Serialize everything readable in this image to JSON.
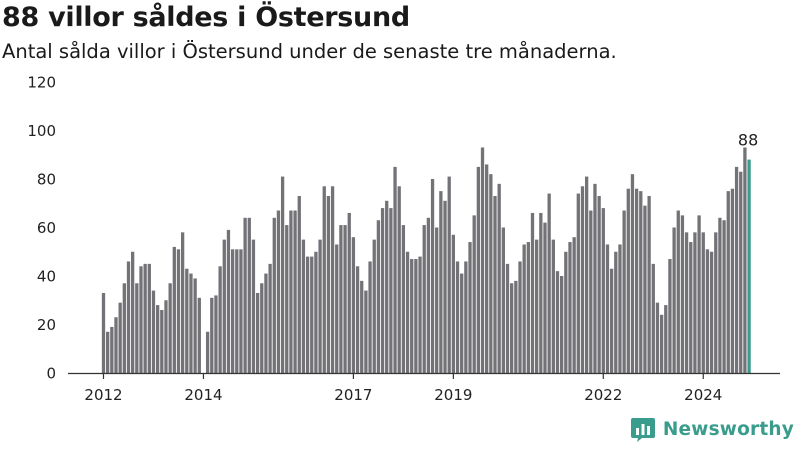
{
  "header": {
    "title": "88 villor såldes i Östersund",
    "subtitle": "Antal sålda villor i Östersund under de senaste tre månaderna."
  },
  "brand": {
    "name": "Newsworthy",
    "logo_icon": "bar-chart-logo-icon"
  },
  "colors": {
    "bar": "#737277",
    "highlight": "#3a9c8c",
    "axis": "#333333",
    "text": "#222222"
  },
  "chart_data": {
    "type": "bar",
    "title": "88 villor såldes i Östersund",
    "subtitle": "Antal sålda villor i Östersund under de senaste tre månaderna.",
    "xlabel": "",
    "ylabel": "",
    "ylim": [
      0,
      120
    ],
    "yticks": [
      "0",
      "20",
      "40",
      "60",
      "80",
      "100",
      "120"
    ],
    "x_start": "2012-01",
    "x_ticks": [
      {
        "label": "2012",
        "date": "2012-01"
      },
      {
        "label": "2014",
        "date": "2014-01"
      },
      {
        "label": "2017",
        "date": "2017-01"
      },
      {
        "label": "2019",
        "date": "2019-01"
      },
      {
        "label": "2022",
        "date": "2022-01"
      },
      {
        "label": "2024",
        "date": "2024-01"
      }
    ],
    "grid": false,
    "highlight_last": true,
    "last_label": "88",
    "values": [
      33,
      17,
      19,
      23,
      29,
      37,
      46,
      50,
      37,
      44,
      45,
      45,
      34,
      28,
      26,
      30,
      37,
      52,
      51,
      58,
      43,
      41,
      39,
      31,
      0,
      17,
      31,
      32,
      44,
      55,
      59,
      51,
      51,
      51,
      64,
      64,
      55,
      33,
      37,
      41,
      45,
      64,
      67,
      81,
      61,
      67,
      67,
      73,
      55,
      48,
      48,
      50,
      55,
      77,
      73,
      77,
      53,
      61,
      61,
      66,
      56,
      44,
      38,
      34,
      46,
      55,
      63,
      68,
      71,
      68,
      85,
      77,
      61,
      50,
      47,
      47,
      48,
      61,
      64,
      80,
      60,
      75,
      71,
      81,
      57,
      46,
      41,
      46,
      54,
      65,
      85,
      93,
      86,
      82,
      73,
      78,
      60,
      45,
      37,
      38,
      46,
      53,
      54,
      66,
      55,
      66,
      62,
      74,
      55,
      42,
      40,
      50,
      54,
      56,
      74,
      77,
      81,
      67,
      78,
      73,
      68,
      53,
      43,
      50,
      53,
      67,
      76,
      82,
      76,
      75,
      69,
      73,
      45,
      29,
      24,
      28,
      47,
      60,
      67,
      65,
      58,
      54,
      58,
      65,
      58,
      51,
      50,
      58,
      64,
      63,
      75,
      76,
      85,
      83,
      93,
      88
    ]
  }
}
